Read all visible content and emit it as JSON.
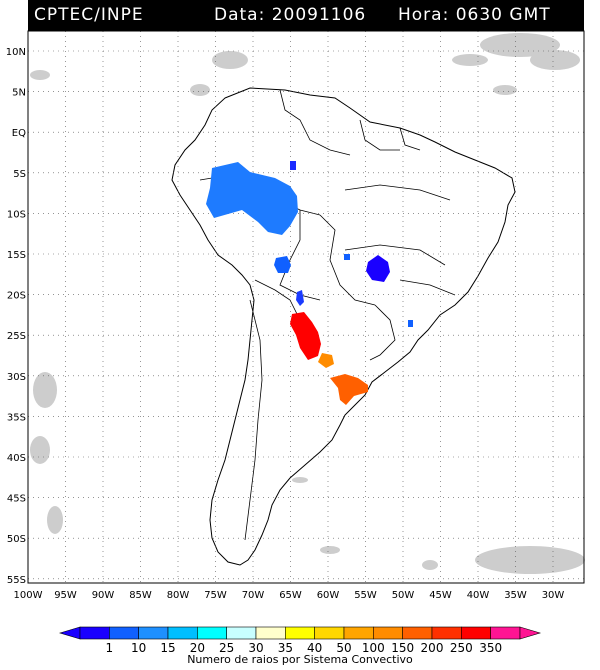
{
  "header": {
    "agency": "CPTEC/INPE",
    "date_text": "Data: 20091106",
    "hour_text": "Hora: 0630 GMT"
  },
  "map": {
    "lat_labels": [
      "10N",
      "5N",
      "EQ",
      "5S",
      "10S",
      "15S",
      "20S",
      "25S",
      "30S",
      "35S",
      "40S",
      "45S",
      "50S",
      "55S"
    ],
    "lon_labels": [
      "100W",
      "95W",
      "90W",
      "85W",
      "80W",
      "75W",
      "70W",
      "65W",
      "60W",
      "55W",
      "50W",
      "45W",
      "40W",
      "35W",
      "30W"
    ],
    "land_color": "#ffffff",
    "border_color": "#000000",
    "grid_style": "dotted"
  },
  "colorbar": {
    "labels": [
      "1",
      "10",
      "15",
      "20",
      "25",
      "30",
      "35",
      "40",
      "50",
      "100",
      "150",
      "200",
      "250",
      "350"
    ],
    "colors": [
      "#1a00ff",
      "#1060ff",
      "#1e90ff",
      "#00bfff",
      "#00ffff",
      "#c8ffff",
      "#ffffcc",
      "#ffff00",
      "#ffd700",
      "#ffa500",
      "#ff8c00",
      "#ff6000",
      "#ff3000",
      "#ff0000",
      "#ff1493"
    ],
    "title": "Numero de raios por Sistema Convectivo"
  },
  "systems": [
    {
      "name": "amazon-west",
      "color": "#1e7bff"
    },
    {
      "name": "acre-south",
      "color": "#1060ff"
    },
    {
      "name": "para-small",
      "color": "#1a2bff"
    },
    {
      "name": "bolivia",
      "color": "#1a3bff"
    },
    {
      "name": "goias",
      "color": "#1a00ff"
    },
    {
      "name": "paraguay-north",
      "color": "#1060ff"
    },
    {
      "name": "argentina-north",
      "color": "#ff0000"
    },
    {
      "name": "argentina-mid",
      "color": "#ff8c00"
    },
    {
      "name": "uruguay",
      "color": "#ff6000"
    },
    {
      "name": "sao-paulo",
      "color": "#1060ff"
    }
  ]
}
